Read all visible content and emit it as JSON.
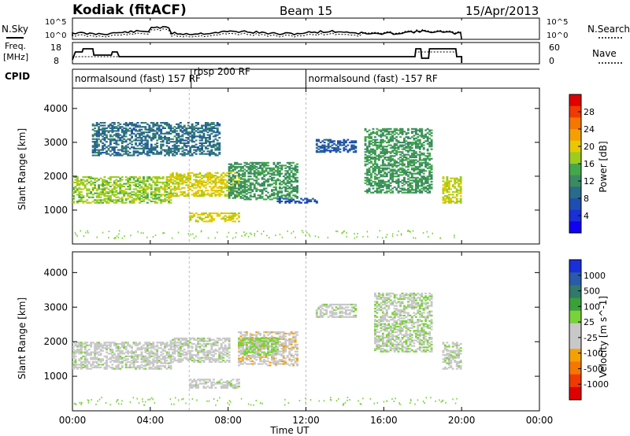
{
  "header": {
    "station": "Kodiak (fitACF)",
    "beam": "Beam 15",
    "date": "15/Apr/2013"
  },
  "top_panels": {
    "nsky_label": "N.Sky",
    "nsearch_label": "N.Search",
    "noise_ticks": [
      "10^5",
      "10^0"
    ],
    "freq_label_line1": "Freq.",
    "freq_label_line2": "[MHz]",
    "freq_ticks": [
      "18",
      "8"
    ],
    "nave_label": "Nave",
    "nave_ticks": [
      "60",
      "0"
    ],
    "cpid_label": "CPID",
    "cpid_segments": [
      {
        "label": "normalsound (fast) 157 RF",
        "start_h": 0.0,
        "end_h": 6.1
      },
      {
        "label": "rbsp 200 RF",
        "start_h": 6.1,
        "end_h": 12.0
      },
      {
        "label": "normalsound (fast) -157 RF",
        "start_h": 12.0,
        "end_h": 24.0
      }
    ]
  },
  "axes": {
    "ylabel": "Slant Range [km]",
    "xlabel": "Time UT",
    "xticks": [
      "00:00",
      "04:00",
      "08:00",
      "12:00",
      "16:00",
      "20:00",
      "00:00"
    ],
    "yticks": [
      "1000",
      "2000",
      "3000",
      "4000"
    ]
  },
  "power_colorbar": {
    "label": "Power [dB]",
    "ticks": [
      "28",
      "24",
      "20",
      "16",
      "12",
      "8",
      "4"
    ],
    "colors": [
      "#e00000",
      "#f03a00",
      "#f57700",
      "#f5a000",
      "#e8c800",
      "#9ccc1e",
      "#44a84a",
      "#3a8a62",
      "#2a6a8a",
      "#1e4fb0",
      "#1a2fd8",
      "#1200f0"
    ]
  },
  "velocity_colorbar": {
    "label": "Velocity [m s^-1]",
    "ticks": [
      "1000",
      "500",
      "100",
      "25",
      "-25",
      "-100",
      "-500",
      "-1000"
    ],
    "colors": [
      "#1a2fd8",
      "#2a5aa8",
      "#2f7a6a",
      "#3aa03a",
      "#7ad23a",
      "#c8c8c8",
      "#c8c8c8",
      "#f5a000",
      "#f57700",
      "#f03a00",
      "#e00000"
    ]
  },
  "chart_data": [
    {
      "type": "heatmap",
      "name": "power",
      "xlabel": "Time UT",
      "ylabel": "Slant Range [km]",
      "xlim": [
        0,
        24
      ],
      "ylim": [
        0,
        4600
      ],
      "colorbar_label": "Power [dB]",
      "colorbar_range": [
        0,
        30
      ],
      "echo_regions": [
        {
          "start_h": 0.0,
          "end_h": 5.0,
          "range_min": 1200,
          "range_max": 2000,
          "value": 16
        },
        {
          "start_h": 5.0,
          "end_h": 8.5,
          "range_min": 1400,
          "range_max": 2100,
          "value": 18
        },
        {
          "start_h": 6.0,
          "end_h": 8.5,
          "range_min": 650,
          "range_max": 900,
          "value": 18
        },
        {
          "start_h": 8.0,
          "end_h": 11.5,
          "range_min": 1300,
          "range_max": 2400,
          "value": 12
        },
        {
          "start_h": 10.5,
          "end_h": 12.5,
          "range_min": 1200,
          "range_max": 1350,
          "value": 6
        },
        {
          "start_h": 1.0,
          "end_h": 7.5,
          "range_min": 2600,
          "range_max": 3600,
          "value": 9
        },
        {
          "start_h": 12.5,
          "end_h": 14.5,
          "range_min": 2700,
          "range_max": 3100,
          "value": 7
        },
        {
          "start_h": 15.0,
          "end_h": 18.5,
          "range_min": 1500,
          "range_max": 3400,
          "value": 12
        },
        {
          "start_h": 19.0,
          "end_h": 20.0,
          "range_min": 1200,
          "range_max": 2000,
          "value": 17
        }
      ]
    },
    {
      "type": "heatmap",
      "name": "velocity",
      "xlabel": "Time UT",
      "ylabel": "Slant Range [km]",
      "xlim": [
        0,
        24
      ],
      "ylim": [
        0,
        4600
      ],
      "colorbar_label": "Velocity [m s^-1]",
      "colorbar_range": [
        -1000,
        1000
      ],
      "echo_regions": [
        {
          "start_h": 0.0,
          "end_h": 5.0,
          "range_min": 1200,
          "range_max": 2000,
          "value": 0
        },
        {
          "start_h": 5.0,
          "end_h": 8.0,
          "range_min": 1400,
          "range_max": 2100,
          "value": 0
        },
        {
          "start_h": 6.0,
          "end_h": 8.5,
          "range_min": 650,
          "range_max": 900,
          "value": 0
        },
        {
          "start_h": 8.5,
          "end_h": 11.5,
          "range_min": 1300,
          "range_max": 2300,
          "value": -200
        },
        {
          "start_h": 8.5,
          "end_h": 10.5,
          "range_min": 1600,
          "range_max": 2100,
          "value": 150
        },
        {
          "start_h": 12.5,
          "end_h": 14.5,
          "range_min": 2700,
          "range_max": 3100,
          "value": 0
        },
        {
          "start_h": 15.5,
          "end_h": 18.5,
          "range_min": 1700,
          "range_max": 3400,
          "value": 60
        },
        {
          "start_h": 19.0,
          "end_h": 20.0,
          "range_min": 1200,
          "range_max": 2000,
          "value": 0
        }
      ]
    }
  ]
}
